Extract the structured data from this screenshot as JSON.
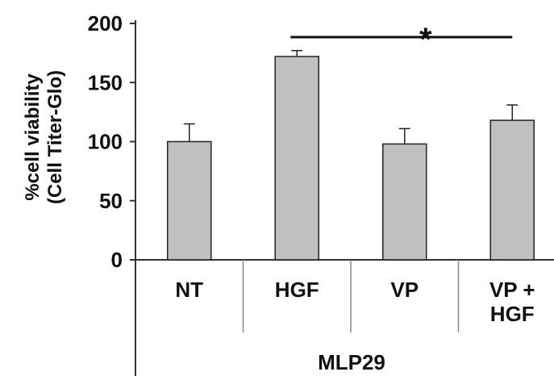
{
  "chart_data": {
    "type": "bar",
    "categories": [
      {
        "lines": [
          "NT"
        ]
      },
      {
        "lines": [
          "HGF"
        ]
      },
      {
        "lines": [
          "VP"
        ]
      },
      {
        "lines": [
          "VP +",
          "HGF"
        ]
      }
    ],
    "values": [
      100,
      172,
      98,
      118
    ],
    "errors": [
      15,
      5,
      13,
      13
    ],
    "ylim": [
      0,
      200
    ],
    "yticks": [
      0,
      50,
      100,
      150,
      200
    ],
    "ylabel_line1": "%cell viability",
    "ylabel_line2": "(Cell Titer-Glo)",
    "group_label": "MLP29",
    "significance": {
      "from": 1,
      "to": 3,
      "label": "*"
    },
    "bar_color": "#c0c0c0",
    "grid": false
  }
}
